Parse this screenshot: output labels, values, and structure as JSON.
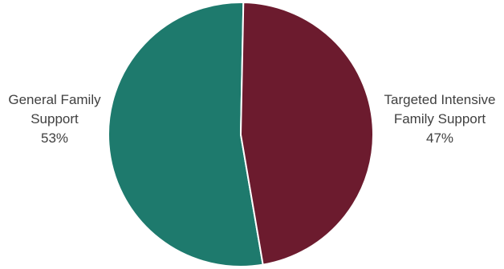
{
  "chart_data": {
    "type": "pie",
    "title": "",
    "slices": [
      {
        "label_lines": [
          "General Family",
          "Support"
        ],
        "value": 53,
        "value_label": "53%",
        "color": "#1e7a6d"
      },
      {
        "label_lines": [
          "Targeted Intensive",
          "Family Support"
        ],
        "value": 47,
        "value_label": "47%",
        "color": "#6c1b2e"
      }
    ],
    "slice_border_color": "#ffffff",
    "legend": "none",
    "labels_position": "outside"
  }
}
